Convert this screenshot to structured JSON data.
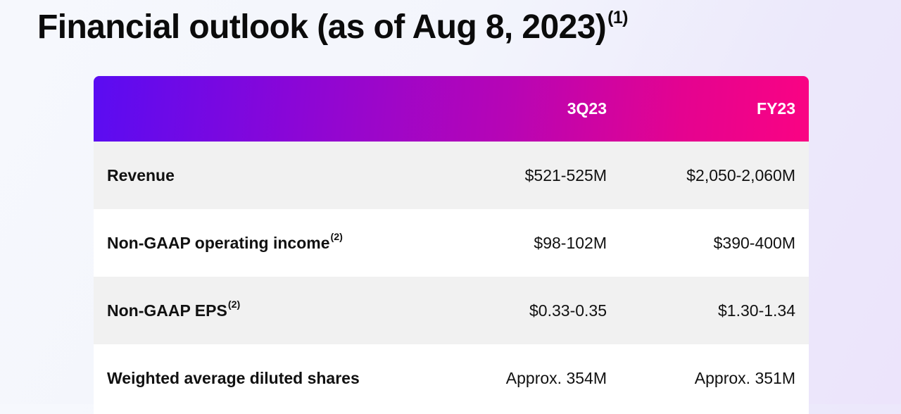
{
  "title": {
    "main": "Financial outlook (as of Aug 8, 2023)",
    "footnote": "(1)"
  },
  "table": {
    "columns": [
      "",
      "3Q23",
      "FY23"
    ],
    "rows": [
      {
        "label": "Revenue",
        "footnote": "",
        "q3": "$521-525M",
        "fy": "$2,050-2,060M"
      },
      {
        "label": "Non-GAAP operating income",
        "footnote": "(2)",
        "q3": "$98-102M",
        "fy": "$390-400M"
      },
      {
        "label": "Non-GAAP EPS",
        "footnote": "(2)",
        "q3": "$0.33-0.35",
        "fy": "$1.30-1.34"
      },
      {
        "label": "Weighted average diluted shares",
        "footnote": "",
        "q3": "Approx. 354M",
        "fy": "Approx. 351M"
      }
    ]
  },
  "colors": {
    "header_gradient_start": "#5a0cf2",
    "header_gradient_end": "#fa0383",
    "row_shade": "#f1f1f1",
    "row_plain": "#ffffff",
    "text": "#111111"
  }
}
